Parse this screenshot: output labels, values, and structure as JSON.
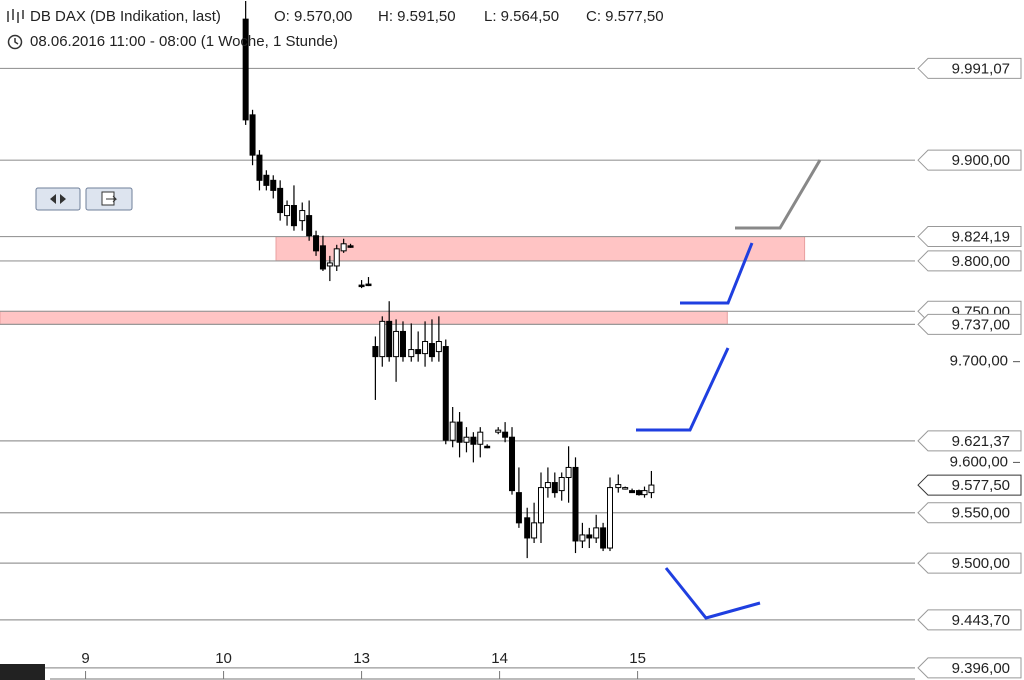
{
  "header": {
    "title": "DB DAX (DB Indikation, last)",
    "ohlc": [
      "O: 9.570,00",
      "H: 9.591,50",
      "L: 9.564,50",
      "C: 9.577,50"
    ],
    "period": "08.06.2016 11:00 - 08:00 (1 Woche, 1 Stunde)"
  },
  "chart_data": {
    "type": "candlestick",
    "x": [
      1.16,
      1.21,
      1.26,
      1.31,
      1.36,
      1.41,
      1.46,
      1.51,
      1.57,
      1.62,
      1.67,
      1.72,
      1.77,
      1.82,
      1.87,
      1.92,
      2.0,
      2.05,
      2.1,
      2.15,
      2.2,
      2.25,
      2.3,
      2.36,
      2.41,
      2.46,
      2.51,
      2.56,
      2.61,
      2.66,
      2.71,
      2.76,
      2.81,
      2.86,
      2.91,
      2.99,
      3.04,
      3.09,
      3.14,
      3.2,
      3.25,
      3.3,
      3.35,
      3.4,
      3.45,
      3.5,
      3.55,
      3.6,
      3.65,
      3.7,
      3.75,
      3.8,
      3.86,
      3.91,
      3.96,
      4.01,
      4.05,
      4.1
    ],
    "open": [
      10040,
      9945,
      9905,
      9885,
      9880,
      9872,
      9845,
      9855,
      9840,
      9845,
      9825,
      9815,
      9795,
      9795,
      9810,
      9815,
      9776,
      9777,
      9715,
      9705,
      9740,
      9705,
      9730,
      9705,
      9712,
      9708,
      9718,
      9710,
      9715,
      9622,
      9640,
      9620,
      9625,
      9618,
      9616,
      9630,
      9630,
      9625,
      9570,
      9545,
      9525,
      9540,
      9575,
      9580,
      9572,
      9585,
      9595,
      9522,
      9528,
      9525,
      9535,
      9515,
      9575,
      9574,
      9572,
      9572,
      9568,
      9570
    ],
    "high": [
      10058,
      9950,
      9910,
      9890,
      9885,
      9880,
      9860,
      9875,
      9858,
      9860,
      9830,
      9825,
      9805,
      9816,
      9822,
      9817,
      9781,
      9784,
      9725,
      9745,
      9760,
      9742,
      9740,
      9738,
      9730,
      9740,
      9742,
      9745,
      9722,
      9655,
      9650,
      9635,
      9630,
      9635,
      9618,
      9635,
      9640,
      9635,
      9595,
      9555,
      9560,
      9590,
      9595,
      9590,
      9590,
      9616,
      9605,
      9540,
      9535,
      9548,
      9540,
      9585,
      9588,
      9576,
      9574,
      9573,
      9576,
      9591.5
    ],
    "low": [
      9935,
      9895,
      9870,
      9870,
      9862,
      9840,
      9835,
      9830,
      9830,
      9820,
      9805,
      9790,
      9780,
      9790,
      9808,
      9813,
      9773,
      9775,
      9662,
      9695,
      9700,
      9680,
      9700,
      9700,
      9700,
      9695,
      9700,
      9700,
      9618,
      9615,
      9605,
      9610,
      9600,
      9605,
      9614,
      9628,
      9620,
      9568,
      9535,
      9505,
      9520,
      9520,
      9565,
      9565,
      9562,
      9560,
      9510,
      9515,
      9515,
      9520,
      9512,
      9512,
      9570,
      9573,
      9570,
      9567,
      9565,
      9564.5
    ],
    "close": [
      9940,
      9905,
      9880,
      9875,
      9870,
      9848,
      9855,
      9835,
      9850,
      9825,
      9810,
      9792,
      9798,
      9812,
      9817,
      9814,
      9776,
      9776,
      9705,
      9740,
      9705,
      9730,
      9705,
      9712,
      9708,
      9720,
      9705,
      9720,
      9622,
      9640,
      9620,
      9625,
      9618,
      9630,
      9616,
      9632,
      9625,
      9572,
      9540,
      9525,
      9540,
      9575,
      9580,
      9570,
      9585,
      9595,
      9522,
      9528,
      9525,
      9535,
      9515,
      9575,
      9578,
      9575,
      9570,
      9568,
      9572,
      9577.5
    ],
    "xlim": [
      -0.62,
      6.01
    ],
    "xticks": [
      {
        "value": 0,
        "label": "9"
      },
      {
        "value": 1,
        "label": "10"
      },
      {
        "value": 2,
        "label": "13"
      },
      {
        "value": 3,
        "label": "14"
      },
      {
        "value": 4,
        "label": "15"
      }
    ],
    "ylim": [
      9384,
      10059
    ],
    "yticks": [
      {
        "value": 9700,
        "label": "9.700,00"
      },
      {
        "value": 9600,
        "label": "9.600,00"
      }
    ],
    "levels": {
      "values": [
        9991.07,
        9900,
        9824.19,
        9800,
        9750,
        9737,
        9621.37,
        9550,
        9500,
        9443.7,
        9396
      ],
      "value_labels": [
        "9.991,07",
        "9.900,00",
        "9.824,19",
        "9.800,00",
        "9.750,00",
        "9.737,00",
        "9.621,37",
        "9.550,00",
        "9.500,00",
        "9.443,70",
        "9.396,00"
      ]
    },
    "last": {
      "value": 9577.5,
      "label": "9.577,50"
    },
    "zones": [
      {
        "from": 9800,
        "to": 9824.19,
        "x": [
          1.38,
          5.21
        ]
      },
      {
        "from": 9737,
        "to": 9750,
        "x": [
          -0.62,
          4.65
        ]
      }
    ],
    "colors": {
      "up": "#ffffff",
      "down": "#000000",
      "zone": "#ffc4c4",
      "level": "#999999"
    }
  }
}
